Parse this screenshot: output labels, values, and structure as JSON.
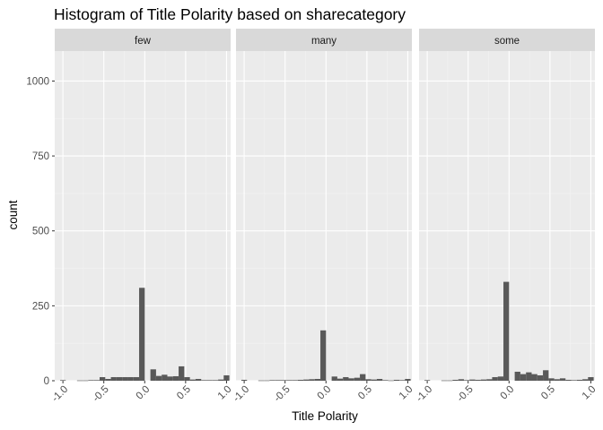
{
  "chart_data": {
    "type": "bar",
    "title": "Histogram of Title Polarity based on sharecategory",
    "xlabel": "Title Polarity",
    "ylabel": "count",
    "xlim": [
      -1.1,
      1.05
    ],
    "ylim": [
      0,
      1100
    ],
    "x_ticks": [
      -1.0,
      -0.5,
      0.0,
      0.5,
      1.0
    ],
    "x_tick_labels": [
      "-1.0",
      "-0.5",
      "0.0",
      "0.5",
      "1.0"
    ],
    "y_ticks": [
      0,
      250,
      500,
      750,
      1000
    ],
    "y_tick_labels": [
      "0",
      "250",
      "500",
      "750",
      "1000"
    ],
    "bin_width": 0.069,
    "bins_x": [
      -1.0,
      -0.931,
      -0.862,
      -0.793,
      -0.724,
      -0.655,
      -0.586,
      -0.517,
      -0.448,
      -0.379,
      -0.31,
      -0.241,
      -0.172,
      -0.103,
      -0.034,
      0.035,
      0.104,
      0.173,
      0.242,
      0.311,
      0.38,
      0.449,
      0.518,
      0.587,
      0.656,
      0.725,
      0.794,
      0.863,
      0.932,
      1.0
    ],
    "grid": true,
    "legend": "none",
    "facets": [
      {
        "name": "few",
        "values": [
          2,
          0,
          0,
          1,
          1,
          2,
          2,
          12,
          6,
          12,
          12,
          12,
          12,
          12,
          310,
          0,
          38,
          16,
          20,
          14,
          15,
          48,
          12,
          4,
          6,
          2,
          2,
          2,
          4,
          18
        ]
      },
      {
        "name": "many",
        "values": [
          3,
          0,
          0,
          1,
          1,
          2,
          2,
          2,
          2,
          2,
          3,
          4,
          5,
          6,
          168,
          0,
          14,
          7,
          12,
          8,
          10,
          22,
          5,
          4,
          6,
          2,
          1,
          3,
          2,
          6
        ]
      },
      {
        "name": "some",
        "values": [
          2,
          0,
          0,
          1,
          1,
          3,
          5,
          2,
          4,
          3,
          4,
          5,
          12,
          14,
          330,
          0,
          30,
          22,
          28,
          22,
          18,
          35,
          8,
          5,
          8,
          3,
          2,
          3,
          5,
          12
        ]
      }
    ],
    "colors": {
      "bar": "#595959",
      "panel_bg": "#ebebeb",
      "strip_bg": "#d9d9d9",
      "grid_major": "#ffffff",
      "grid_minor": "#f3f3f3",
      "tick_text": "#4d4d4d"
    }
  }
}
